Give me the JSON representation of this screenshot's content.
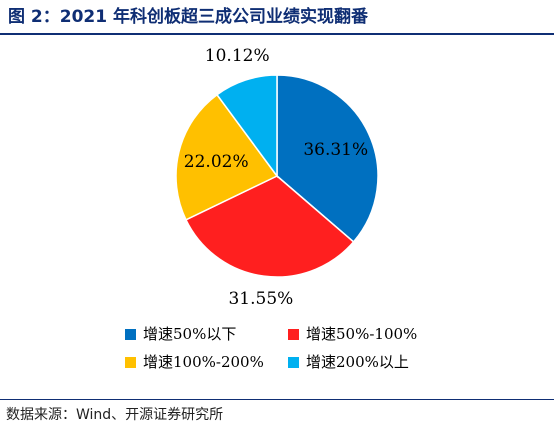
{
  "header": {
    "title": "图 2：2021 年科创板超三成公司业绩实现翻番"
  },
  "footer": {
    "source": "数据来源：Wind、开源证券研究所"
  },
  "colors": {
    "title": "#0f2e74",
    "series": [
      "#0070c0",
      "#ff1f1f",
      "#ffc000",
      "#00b0f0"
    ]
  },
  "chart_data": {
    "type": "pie",
    "title": "",
    "start_angle_deg": 0,
    "direction": "clockwise",
    "legend_position": "bottom",
    "categories": [
      "增速50%以下",
      "增速50%-100%",
      "增速100%-200%",
      "增速200%以上"
    ],
    "values": [
      36.31,
      31.55,
      22.02,
      10.12
    ],
    "value_labels": [
      "36.31%",
      "31.55%",
      "22.02%",
      "10.12%"
    ]
  }
}
